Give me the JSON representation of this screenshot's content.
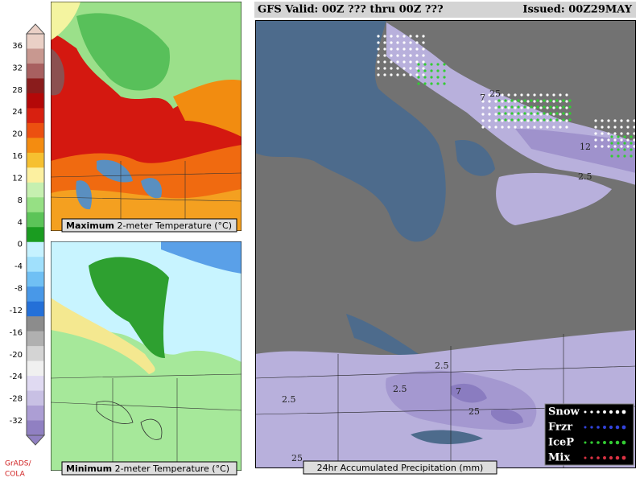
{
  "header": {
    "title": "GFS Valid: 00Z ??? thru 00Z ???",
    "issued": "Issued: 00Z29MAY"
  },
  "colorbar": {
    "ticks": [
      36,
      32,
      28,
      24,
      20,
      16,
      12,
      8,
      4,
      0,
      -4,
      -8,
      -12,
      -16,
      -20,
      -24,
      -28,
      -32
    ]
  },
  "panels": [
    {
      "caption_bold": "Maximum",
      "caption": "2-meter Temperature (°C)"
    },
    {
      "caption_bold": "Minimum",
      "caption": "2-meter Temperature (°C)"
    },
    {
      "caption": "24hr Accumulated Precipitation (mm)"
    }
  ],
  "legend": [
    "Snow",
    "Frzr",
    "IceP",
    "Mix"
  ],
  "contour_labels": [
    "25",
    "12",
    "2.5",
    "7",
    "2.5",
    "2.5",
    "25",
    "7",
    "2.5",
    "25"
  ],
  "credit": [
    "GrADS/",
    "COLA"
  ]
}
